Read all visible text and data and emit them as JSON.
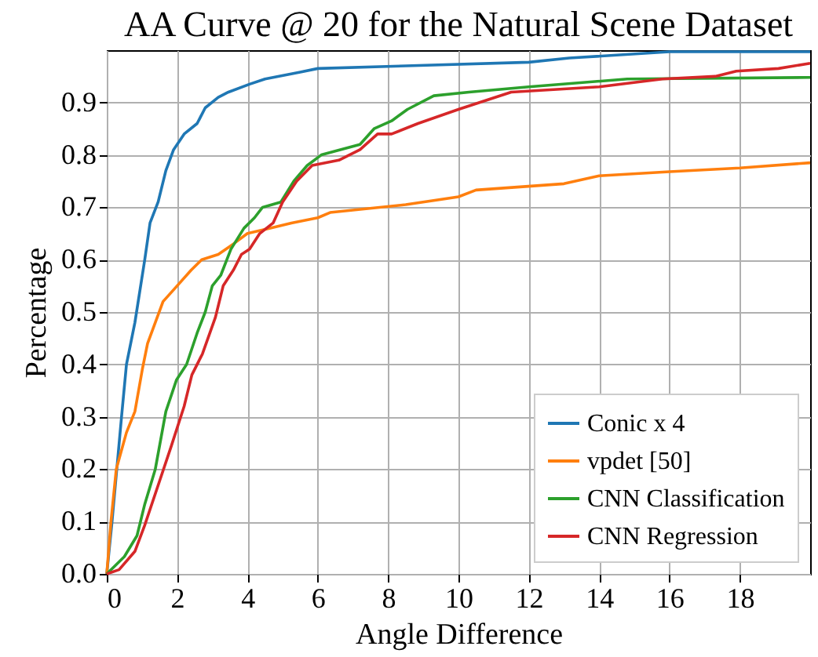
{
  "chart_data": {
    "type": "line",
    "title": "AA Curve @ 20 for the Natural Scene Dataset",
    "xlabel": "Angle Difference",
    "ylabel": "Percentage",
    "xlim": [
      0,
      20
    ],
    "ylim": [
      0,
      1
    ],
    "xticks": [
      0,
      2,
      4,
      6,
      8,
      10,
      12,
      14,
      16,
      18
    ],
    "yticks": [
      {
        "value": 0,
        "label": "0.0"
      },
      0.1,
      0.2,
      0.3,
      0.4,
      0.5,
      0.6,
      0.7,
      0.8,
      0.9
    ],
    "grid": true,
    "legend": "bottom right",
    "marker": "none",
    "line_style": "solid",
    "x": [
      0,
      0.15,
      0.42,
      0.56,
      0.8,
      1.08,
      1.23,
      1.46,
      1.68,
      1.9,
      2.2,
      2.57,
      2.8,
      3.17,
      3.46,
      4.06,
      4.5,
      5.5,
      6,
      8.5,
      12,
      13.15,
      16,
      20
    ],
    "series": [
      {
        "name": "Conic x 4",
        "color": "#1f77b4",
        "values": [
          0,
          0.1,
          0.3,
          0.4,
          0.48,
          0.6,
          0.67,
          0.71,
          0.77,
          0.81,
          0.84,
          0.86,
          0.89,
          0.91,
          0.92,
          0.935,
          0.945,
          0.958,
          0.965,
          0.97,
          0.977,
          0.985,
          0.997,
          0.997
        ]
      },
      {
        "name": "vpdet [50]",
        "color": "#ff7f0e",
        "x": [
          0,
          0.12,
          0.27,
          0.56,
          0.8,
          1.01,
          1.16,
          1.38,
          1.6,
          2.0,
          2.4,
          2.7,
          3.17,
          3.6,
          4.0,
          4.65,
          5.25,
          6.0,
          6.35,
          8.5,
          10,
          10.5,
          13,
          14,
          16,
          18,
          20
        ],
        "values": [
          0,
          0.1,
          0.2,
          0.27,
          0.31,
          0.39,
          0.44,
          0.48,
          0.52,
          0.55,
          0.58,
          0.6,
          0.61,
          0.63,
          0.65,
          0.66,
          0.67,
          0.68,
          0.69,
          0.705,
          0.72,
          0.733,
          0.745,
          0.76,
          0.768,
          0.775,
          0.785
        ]
      },
      {
        "name": "CNN Classification",
        "color": "#2ca02c",
        "x": [
          0,
          0.2,
          0.5,
          0.86,
          1.08,
          1.38,
          1.68,
          1.98,
          2.27,
          2.57,
          2.8,
          3.0,
          3.24,
          3.53,
          3.9,
          4.2,
          4.43,
          4.95,
          5.32,
          5.7,
          6.1,
          7.2,
          7.6,
          8.1,
          8.55,
          9.3,
          10.3,
          12,
          14.8,
          20
        ],
        "values": [
          0,
          0.013,
          0.033,
          0.073,
          0.133,
          0.2,
          0.31,
          0.37,
          0.4,
          0.46,
          0.5,
          0.55,
          0.57,
          0.62,
          0.66,
          0.68,
          0.7,
          0.71,
          0.75,
          0.78,
          0.8,
          0.82,
          0.85,
          0.865,
          0.887,
          0.913,
          0.92,
          0.93,
          0.945,
          0.948
        ]
      },
      {
        "name": "CNN Regression",
        "color": "#d62728",
        "x": [
          0,
          0.35,
          0.8,
          1.08,
          1.53,
          1.83,
          2.2,
          2.42,
          2.72,
          3.09,
          3.31,
          3.6,
          3.83,
          4.06,
          4.35,
          4.73,
          5.0,
          5.4,
          5.84,
          6.6,
          7.2,
          7.7,
          8.1,
          8.85,
          10,
          11.5,
          14,
          15.8,
          17.3,
          17.9,
          19.1,
          20
        ],
        "values": [
          0,
          0.008,
          0.043,
          0.093,
          0.183,
          0.243,
          0.32,
          0.38,
          0.42,
          0.49,
          0.55,
          0.58,
          0.61,
          0.62,
          0.65,
          0.67,
          0.71,
          0.75,
          0.78,
          0.79,
          0.81,
          0.84,
          0.84,
          0.86,
          0.887,
          0.92,
          0.93,
          0.945,
          0.95,
          0.96,
          0.965,
          0.975
        ]
      }
    ]
  }
}
